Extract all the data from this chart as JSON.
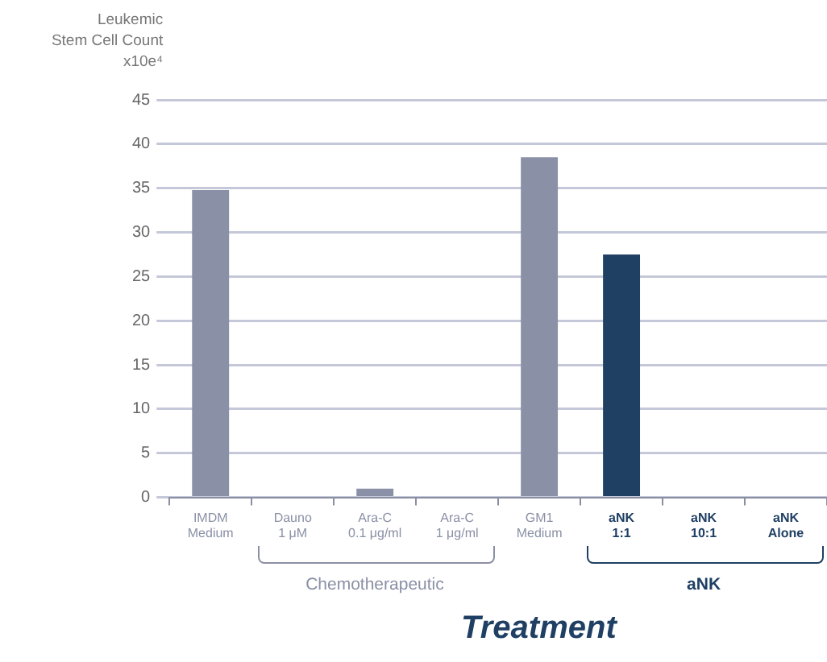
{
  "chart_data": {
    "type": "bar",
    "xlabel": "Treatment",
    "ylabel": "Leukemic\nStem Cell Count\nx10e⁴",
    "categories": [
      "IMDM Medium",
      "Dauno 1 μM",
      "Ara-C 0.1 μg/ml",
      "Ara-C 1 μg/ml",
      "GM1 Medium",
      "aNK 1:1",
      "aNK 10:1",
      "aNK Alone"
    ],
    "values": [
      34.8,
      0,
      1,
      0,
      38.5,
      27.5,
      0,
      0
    ],
    "colors": [
      "#8a90a6",
      "#8a90a6",
      "#8a90a6",
      "#8a90a6",
      "#8a90a6",
      "#1f3f63",
      "#1f3f63",
      "#1f3f63"
    ],
    "ylim": [
      0,
      45
    ],
    "yticks": [
      0,
      5,
      10,
      15,
      20,
      25,
      30,
      35,
      40,
      45
    ],
    "grid": "y",
    "legend": false,
    "annotations": [
      "Chemotherapeutic",
      "aNK"
    ]
  }
}
